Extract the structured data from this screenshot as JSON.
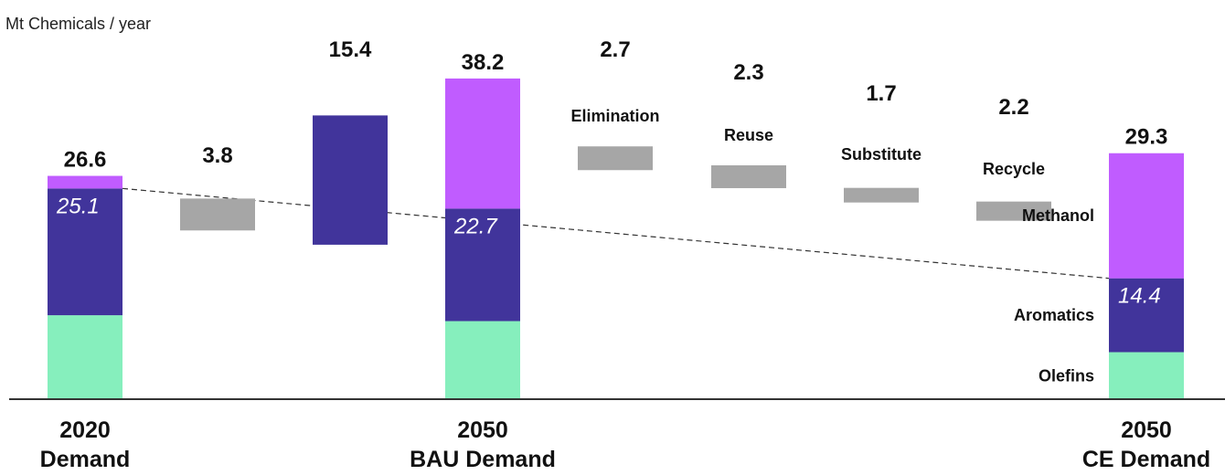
{
  "chart_data": {
    "type": "bar",
    "subtype": "waterfall",
    "unit_label": "Mt Chemicals / year",
    "colors": {
      "olefins": "#86efbd",
      "aromatics": "#41349b",
      "methanol": "#c05cff",
      "growth": "#41349b",
      "reduction": "#a6a6a6",
      "axis": "#333333",
      "trend_line": "#333333"
    },
    "segment_names": [
      "Olefins",
      "Aromatics",
      "Methanol"
    ],
    "stacked_bars": [
      {
        "id": "2020",
        "category": [
          "2020",
          "Demand"
        ],
        "total": 26.6,
        "segments": {
          "olefins": 10.0,
          "aromatics": 15.1,
          "methanol": 1.5
        },
        "inner_label": "25.1"
      },
      {
        "id": "2050bau",
        "category": [
          "2050",
          "BAU Demand"
        ],
        "total": 38.2,
        "segments": {
          "olefins": 9.3,
          "aromatics": 13.4,
          "methanol": 15.5
        },
        "inner_label": "22.7"
      },
      {
        "id": "2050ce",
        "category": [
          "2050",
          "CE Demand"
        ],
        "total": 29.3,
        "segments": {
          "olefins": 5.6,
          "aromatics": 8.8,
          "methanol": 14.9
        },
        "inner_label": "14.4"
      }
    ],
    "steps": [
      {
        "id": "step-1",
        "value": 3.8,
        "direction": "up",
        "base": 20.1,
        "label": ""
      },
      {
        "id": "step-2",
        "value": 15.4,
        "direction": "up",
        "base": 18.4,
        "label": ""
      },
      {
        "id": "step-3",
        "value": 2.7,
        "direction": "down",
        "base": 28.7,
        "label": "Elimination"
      },
      {
        "id": "step-4",
        "value": 2.3,
        "direction": "down",
        "base": 26.5,
        "label": "Reuse"
      },
      {
        "id": "step-5",
        "value": 1.7,
        "direction": "down",
        "base": 24.3,
        "label": "Substitute"
      },
      {
        "id": "step-6",
        "value": 2.2,
        "direction": "down",
        "base": 22.4,
        "label": "Recycle"
      }
    ],
    "trend_line": {
      "from_bar": "2020",
      "to_bar": "2050ce",
      "style": "dashed"
    },
    "ylim": [
      0,
      40
    ]
  }
}
